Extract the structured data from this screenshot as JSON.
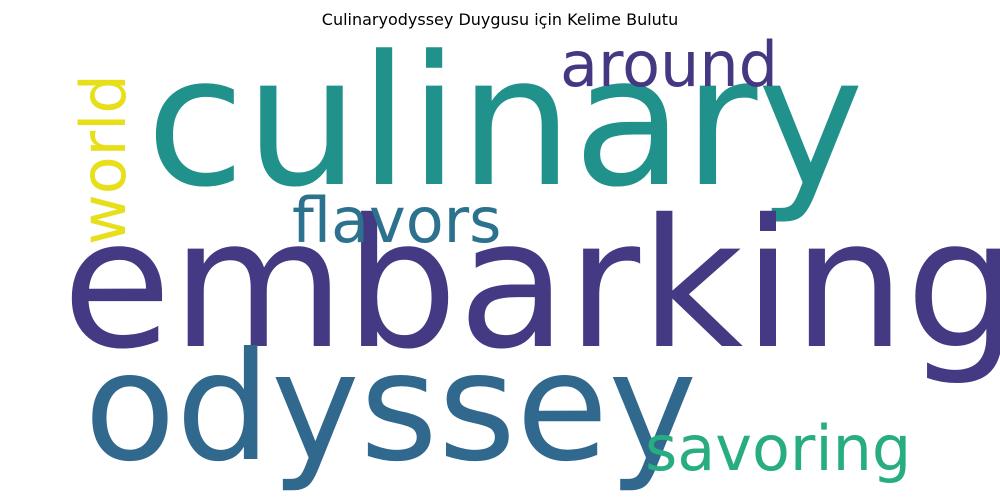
{
  "title": "Culinaryodyssey Duygusu için Kelime Bulutu",
  "words": [
    {
      "text": "culinary",
      "color": "#21918c",
      "orientation": "horizontal"
    },
    {
      "text": "embarking",
      "color": "#443a83",
      "orientation": "horizontal"
    },
    {
      "text": "odyssey",
      "color": "#31688e",
      "orientation": "horizontal"
    },
    {
      "text": "flavors",
      "color": "#2c728e",
      "orientation": "horizontal"
    },
    {
      "text": "around",
      "color": "#453781",
      "orientation": "horizontal"
    },
    {
      "text": "savoring",
      "color": "#27ad81",
      "orientation": "horizontal"
    },
    {
      "text": "world",
      "color": "#e6df1a",
      "orientation": "vertical"
    }
  ]
}
